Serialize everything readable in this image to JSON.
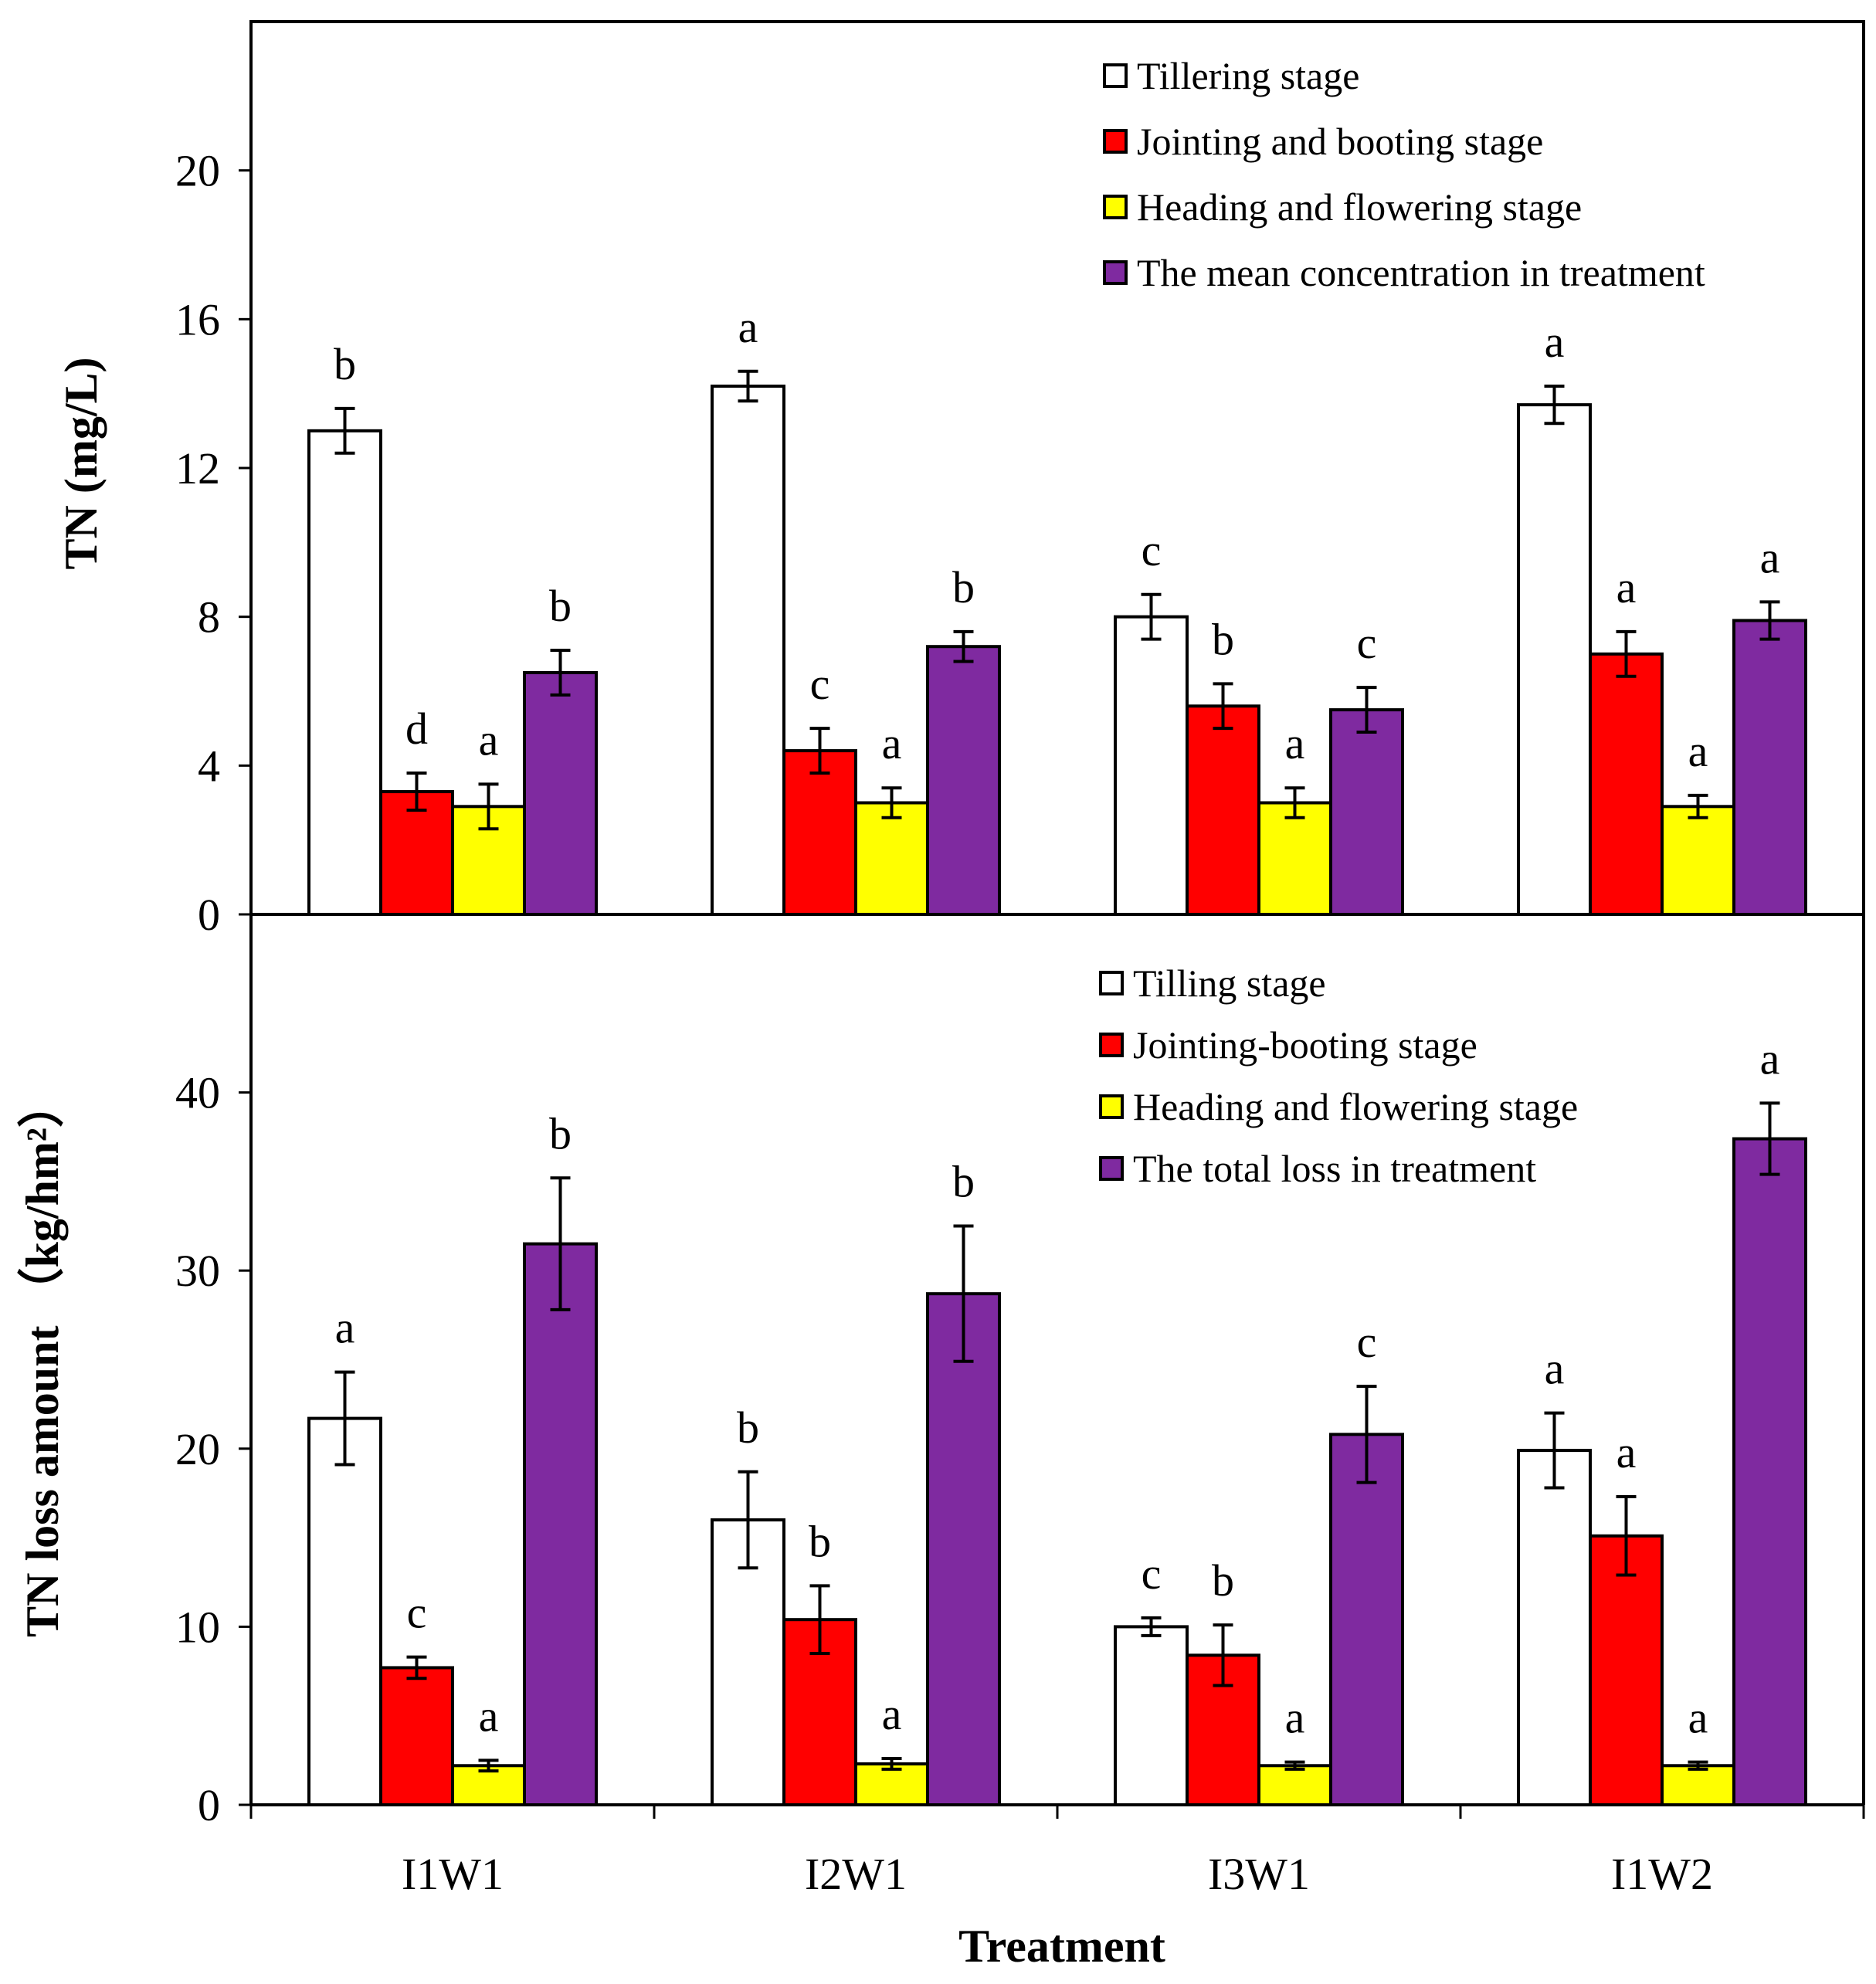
{
  "chart_data": [
    {
      "type": "bar",
      "panel": "top",
      "ylabel": "TN (mg/L)",
      "ylim": [
        0,
        24
      ],
      "yticks": [
        0,
        4,
        8,
        12,
        16,
        20
      ],
      "categories": [
        "I1W1",
        "I2W1",
        "I3W1",
        "I1W2"
      ],
      "series": [
        {
          "name": "Tillering stage",
          "color": "#ffffff",
          "values": [
            13.0,
            14.2,
            8.0,
            13.7
          ],
          "errors": [
            0.6,
            0.4,
            0.6,
            0.5
          ],
          "letters": [
            "b",
            "a",
            "c",
            "a"
          ]
        },
        {
          "name": "Jointing and booting stage",
          "color": "#ff0000",
          "values": [
            3.3,
            4.4,
            5.6,
            7.0
          ],
          "errors": [
            0.5,
            0.6,
            0.6,
            0.6
          ],
          "letters": [
            "d",
            "c",
            "b",
            "a"
          ]
        },
        {
          "name": "Heading and flowering stage",
          "color": "#ffff00",
          "values": [
            2.9,
            3.0,
            3.0,
            2.9
          ],
          "errors": [
            0.6,
            0.4,
            0.4,
            0.3
          ],
          "letters": [
            "a",
            "a",
            "a",
            "a"
          ]
        },
        {
          "name": "The mean concentration in treatment",
          "color": "#7f2aa0",
          "values": [
            6.5,
            7.2,
            5.5,
            7.9
          ],
          "errors": [
            0.6,
            0.4,
            0.6,
            0.5
          ],
          "letters": [
            "b",
            "b",
            "c",
            "a"
          ]
        }
      ]
    },
    {
      "type": "bar",
      "panel": "bottom",
      "ylabel": "TN loss amount （kg/hm²）",
      "ylim": [
        0,
        50
      ],
      "yticks": [
        0,
        10,
        20,
        30,
        40
      ],
      "xlabel": "Treatment",
      "categories": [
        "I1W1",
        "I2W1",
        "I3W1",
        "I1W2"
      ],
      "series": [
        {
          "name": "Tilling stage",
          "color": "#ffffff",
          "values": [
            21.7,
            16.0,
            10.0,
            19.9
          ],
          "errors": [
            2.6,
            2.7,
            0.5,
            2.1
          ],
          "letters": [
            "a",
            "b",
            "c",
            "a"
          ]
        },
        {
          "name": "Jointing-booting stage",
          "color": "#ff0000",
          "values": [
            7.7,
            10.4,
            8.4,
            15.1
          ],
          "errors": [
            0.6,
            1.9,
            1.7,
            2.2
          ],
          "letters": [
            "c",
            "b",
            "b",
            "a"
          ]
        },
        {
          "name": "Heading and flowering stage",
          "color": "#ffff00",
          "values": [
            2.2,
            2.3,
            2.2,
            2.2
          ],
          "errors": [
            0.3,
            0.3,
            0.2,
            0.2
          ],
          "letters": [
            "a",
            "a",
            "a",
            "a"
          ]
        },
        {
          "name": "The total loss in treatment",
          "color": "#7f2aa0",
          "values": [
            31.5,
            28.7,
            20.8,
            37.4
          ],
          "errors": [
            3.7,
            3.8,
            2.7,
            2.0
          ],
          "letters": [
            "b",
            "b",
            "c",
            "a"
          ]
        }
      ]
    }
  ]
}
